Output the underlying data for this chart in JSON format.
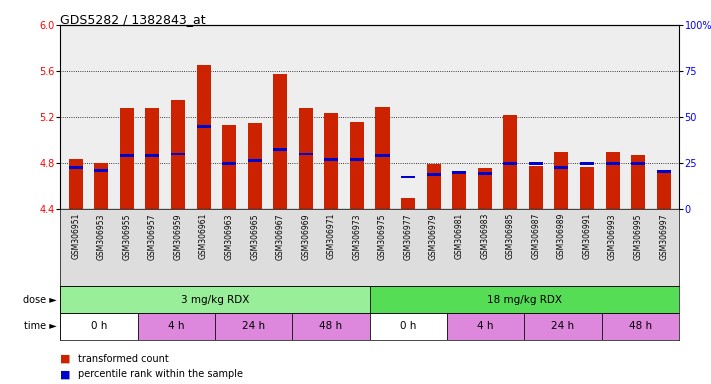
{
  "title": "GDS5282 / 1382843_at",
  "samples": [
    "GSM306951",
    "GSM306953",
    "GSM306955",
    "GSM306957",
    "GSM306959",
    "GSM306961",
    "GSM306963",
    "GSM306965",
    "GSM306967",
    "GSM306969",
    "GSM306971",
    "GSM306973",
    "GSM306975",
    "GSM306977",
    "GSM306979",
    "GSM306981",
    "GSM306983",
    "GSM306985",
    "GSM306987",
    "GSM306989",
    "GSM306991",
    "GSM306993",
    "GSM306995",
    "GSM306997"
  ],
  "bar_values": [
    4.84,
    4.8,
    5.28,
    5.28,
    5.35,
    5.65,
    5.13,
    5.15,
    5.57,
    5.28,
    5.24,
    5.16,
    5.29,
    4.5,
    4.79,
    4.71,
    4.76,
    5.22,
    4.78,
    4.9,
    4.77,
    4.9,
    4.87,
    4.73
  ],
  "percentile_values": [
    4.76,
    4.74,
    4.87,
    4.87,
    4.88,
    5.12,
    4.8,
    4.82,
    4.92,
    4.88,
    4.83,
    4.83,
    4.87,
    4.68,
    4.7,
    4.72,
    4.71,
    4.8,
    4.8,
    4.76,
    4.8,
    4.8,
    4.8,
    4.73
  ],
  "ymin": 4.4,
  "ymax": 6.0,
  "bar_color": "#cc2200",
  "percentile_color": "#0000cc",
  "dose_groups": [
    {
      "label": "3 mg/kg RDX",
      "start": 0,
      "end": 12,
      "color": "#99ee99"
    },
    {
      "label": "18 mg/kg RDX",
      "start": 12,
      "end": 24,
      "color": "#55dd55"
    }
  ],
  "time_groups": [
    {
      "label": "0 h",
      "start": 0,
      "end": 3,
      "color": "#ffffff"
    },
    {
      "label": "4 h",
      "start": 3,
      "end": 6,
      "color": "#dd88dd"
    },
    {
      "label": "24 h",
      "start": 6,
      "end": 9,
      "color": "#dd88dd"
    },
    {
      "label": "48 h",
      "start": 9,
      "end": 12,
      "color": "#dd88dd"
    },
    {
      "label": "0 h",
      "start": 12,
      "end": 15,
      "color": "#ffffff"
    },
    {
      "label": "4 h",
      "start": 15,
      "end": 18,
      "color": "#dd88dd"
    },
    {
      "label": "24 h",
      "start": 18,
      "end": 21,
      "color": "#dd88dd"
    },
    {
      "label": "48 h",
      "start": 21,
      "end": 24,
      "color": "#dd88dd"
    }
  ]
}
